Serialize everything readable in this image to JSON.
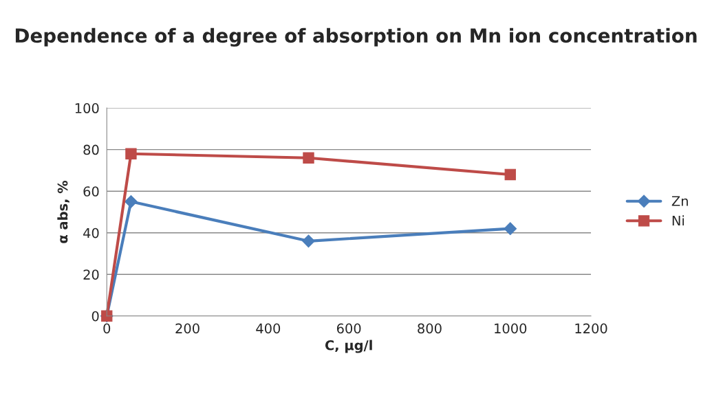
{
  "chart_data": {
    "type": "line",
    "title": "Dependence of a degree of absorption on Mn ion concentration",
    "xlabel": "C, μg/l",
    "ylabel": "α abs, %",
    "x": [
      0,
      60,
      500,
      1000
    ],
    "series": [
      {
        "name": "Zn",
        "color": "#4a7ebb",
        "marker": "diamond",
        "values": [
          0,
          55,
          36,
          42
        ]
      },
      {
        "name": "Ni",
        "color": "#be4b48",
        "marker": "square",
        "values": [
          0,
          78,
          76,
          68
        ]
      }
    ],
    "xlim": [
      0,
      1200
    ],
    "xticks": [
      0,
      200,
      400,
      600,
      800,
      1000,
      1200
    ],
    "ylim": [
      0,
      100
    ],
    "yticks": [
      0,
      20,
      40,
      60,
      80,
      100
    ],
    "grid": "y",
    "legend": "right",
    "line_style": "solid"
  }
}
